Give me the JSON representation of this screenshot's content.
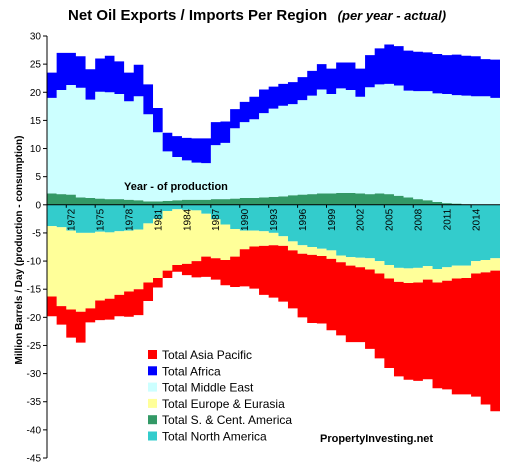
{
  "chart_data": {
    "type": "area",
    "title": "Net Oil Exports / Imports Per Region",
    "subtitle": "(per year - actual)",
    "ylabel": "Million Barrels / Day  (production - consumption)",
    "xlabel": "Year - of production",
    "ylim": [
      -45,
      30
    ],
    "yticks": [
      30,
      25,
      20,
      15,
      10,
      5,
      0,
      -5,
      -10,
      -15,
      -20,
      -25,
      -30,
      -35,
      -40,
      -45
    ],
    "xtick_labels": [
      "1972",
      "1975",
      "1978",
      "1981",
      "1984",
      "1987",
      "1990",
      "1993",
      "1996",
      "1999",
      "2002",
      "2005",
      "2008",
      "2011",
      "2014"
    ],
    "grid": false,
    "legend_position": "bottom-left",
    "watermark": "PropertyInvesting.net",
    "x": [
      1970,
      1971,
      1972,
      1973,
      1974,
      1975,
      1976,
      1977,
      1978,
      1979,
      1980,
      1981,
      1982,
      1983,
      1984,
      1985,
      1986,
      1987,
      1988,
      1989,
      1990,
      1991,
      1992,
      1993,
      1994,
      1995,
      1996,
      1997,
      1998,
      1999,
      2000,
      2001,
      2002,
      2003,
      2004,
      2005,
      2006,
      2007,
      2008,
      2009,
      2010,
      2011,
      2012,
      2013,
      2014,
      2015,
      2016
    ],
    "positive_series": [
      {
        "name": "Total S. & Cent. America",
        "color": "#339966",
        "values": [
          2.0,
          1.9,
          1.8,
          1.3,
          1.2,
          1.1,
          1.0,
          1.0,
          0.9,
          0.8,
          0.6,
          0.6,
          0.7,
          0.8,
          0.9,
          0.9,
          0.9,
          1.0,
          1.0,
          1.1,
          1.2,
          1.2,
          1.3,
          1.4,
          1.5,
          1.7,
          1.8,
          1.9,
          2.0,
          2.0,
          2.1,
          2.1,
          2.0,
          1.9,
          2.0,
          1.9,
          1.6,
          1.3,
          1.0,
          0.8,
          0.5,
          0.3,
          0.2,
          0.1,
          0.0,
          0.0,
          0.0
        ]
      },
      {
        "name": "Total Middle East",
        "color": "#ccffff",
        "values": [
          17.0,
          18.5,
          19.5,
          19.5,
          17.5,
          19.0,
          19.0,
          18.7,
          17.5,
          18.5,
          15.5,
          12.3,
          8.8,
          7.7,
          7.0,
          6.6,
          6.5,
          9.6,
          10.0,
          12.5,
          13.5,
          14.0,
          15.0,
          15.7,
          16.1,
          16.2,
          16.8,
          17.5,
          18.5,
          17.7,
          18.6,
          18.3,
          17.2,
          19.0,
          19.4,
          19.6,
          19.6,
          19.0,
          19.2,
          19.4,
          19.3,
          19.4,
          19.3,
          19.3,
          19.3,
          19.3,
          19.0
        ]
      },
      {
        "name": "Total Africa",
        "color": "#0000ff",
        "values": [
          4.5,
          6.6,
          5.7,
          5.6,
          5.4,
          5.9,
          6.5,
          5.8,
          5.1,
          5.6,
          5.3,
          4.3,
          3.3,
          3.7,
          4.0,
          4.3,
          4.4,
          4.1,
          3.8,
          3.4,
          3.6,
          4.0,
          4.2,
          3.9,
          3.9,
          3.9,
          4.1,
          4.4,
          4.5,
          4.5,
          4.6,
          4.9,
          5.0,
          5.7,
          6.4,
          7.0,
          7.0,
          7.1,
          7.0,
          6.9,
          7.0,
          6.9,
          7.2,
          7.1,
          7.1,
          6.6,
          6.8
        ]
      }
    ],
    "negative_series": [
      {
        "name": "Total North America",
        "color": "#33cccc",
        "values": [
          -3.8,
          -4.0,
          -4.6,
          -5.0,
          -5.0,
          -4.8,
          -4.9,
          -4.7,
          -4.6,
          -4.4,
          -3.3,
          -2.5,
          -1.1,
          -0.8,
          -0.9,
          -1.0,
          -1.6,
          -2.6,
          -3.5,
          -4.3,
          -4.6,
          -4.6,
          -4.7,
          -5.0,
          -5.6,
          -6.5,
          -7.2,
          -7.5,
          -7.8,
          -8.1,
          -9.0,
          -9.3,
          -9.4,
          -9.5,
          -10.0,
          -10.7,
          -11.2,
          -11.3,
          -11.2,
          -10.9,
          -11.4,
          -11.1,
          -10.8,
          -10.8,
          -10.0,
          -9.8,
          -9.5
        ]
      },
      {
        "name": "Total Europe & Eurasia",
        "color": "#ffff99",
        "values": [
          -12.5,
          -14.0,
          -14.0,
          -14.0,
          -13.4,
          -12.2,
          -11.8,
          -11.3,
          -10.8,
          -10.6,
          -10.5,
          -10.5,
          -10.6,
          -9.9,
          -9.6,
          -9.0,
          -7.6,
          -6.9,
          -6.3,
          -4.9,
          -3.3,
          -2.8,
          -2.6,
          -2.2,
          -1.7,
          -1.6,
          -1.5,
          -1.4,
          -1.3,
          -1.5,
          -1.2,
          -1.5,
          -1.7,
          -2.0,
          -2.2,
          -2.4,
          -2.5,
          -2.6,
          -2.6,
          -2.4,
          -2.4,
          -2.4,
          -2.3,
          -2.2,
          -2.2,
          -2.2,
          -2.2
        ]
      },
      {
        "name": "Total Asia Pacific",
        "color": "#ff0000",
        "values": [
          -3.5,
          -3.3,
          -5.0,
          -5.5,
          -2.5,
          -3.5,
          -3.7,
          -3.8,
          -4.5,
          -4.6,
          -3.3,
          -1.7,
          -1.3,
          -1.2,
          -2.0,
          -2.9,
          -3.6,
          -3.8,
          -4.5,
          -5.4,
          -6.6,
          -7.5,
          -8.7,
          -9.3,
          -9.9,
          -10.3,
          -11.3,
          -12.1,
          -12.0,
          -12.7,
          -13.0,
          -13.6,
          -13.3,
          -14.1,
          -15.1,
          -15.9,
          -16.8,
          -17.2,
          -17.5,
          -17.7,
          -18.8,
          -19.3,
          -20.6,
          -20.7,
          -21.9,
          -23.5,
          -25.0
        ]
      }
    ]
  },
  "legend": [
    {
      "label": "Total Asia Pacific",
      "color": "#ff0000"
    },
    {
      "label": "Total Africa",
      "color": "#0000ff"
    },
    {
      "label": "Total Middle East",
      "color": "#ccffff"
    },
    {
      "label": "Total Europe & Eurasia",
      "color": "#ffff99"
    },
    {
      "label": "Total S. & Cent. America",
      "color": "#339966"
    },
    {
      "label": "Total North America",
      "color": "#33cccc"
    }
  ]
}
